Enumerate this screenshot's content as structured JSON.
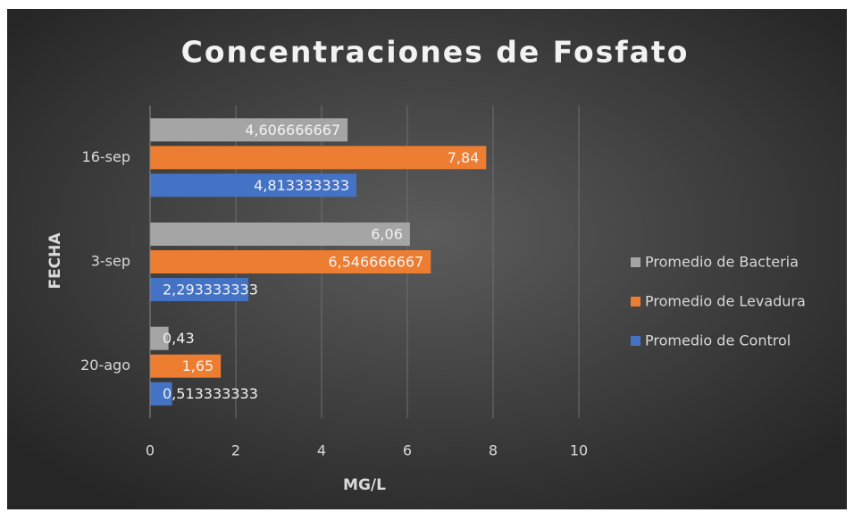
{
  "chart_data": {
    "type": "bar",
    "orientation": "horizontal",
    "title": "Concentraciones de Fosfato",
    "xlabel": "MG/L",
    "ylabel": "FECHA",
    "categories": [
      "20-ago",
      "3-sep",
      "16-sep"
    ],
    "series": [
      {
        "name": "Promedio de Bacteria",
        "color": "#a5a5a5",
        "values": [
          0.43,
          6.06,
          4.606666667
        ],
        "value_labels": [
          "0,43",
          "6,06",
          "4,606666667"
        ]
      },
      {
        "name": "Promedio de Levadura",
        "color": "#ed7d31",
        "values": [
          1.65,
          6.546666667,
          7.84
        ],
        "value_labels": [
          "1,65",
          "6,546666667",
          "7,84"
        ]
      },
      {
        "name": "Promedio de Control",
        "color": "#4472c4",
        "values": [
          0.513333333,
          2.293333333,
          4.813333333
        ],
        "value_labels": [
          "0,513333333",
          "2,293333333",
          "4,813333333"
        ]
      }
    ],
    "xlim": [
      0,
      10
    ],
    "xticks": [
      0,
      2,
      4,
      6,
      8,
      10
    ],
    "grid": true,
    "legend": "right"
  }
}
